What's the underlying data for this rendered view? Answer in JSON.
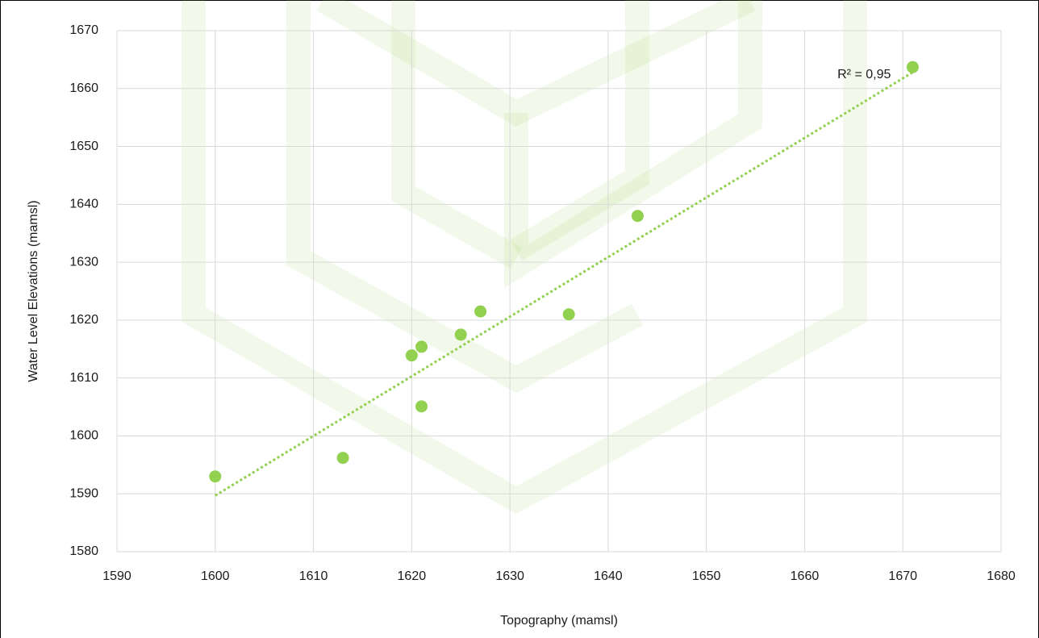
{
  "chart_data": {
    "type": "scatter",
    "x_label": "Topography (mamsl)",
    "y_label": "Water Level Elevations (mamsl)",
    "x": [
      1600,
      1613,
      1620,
      1621,
      1621,
      1625,
      1627,
      1636,
      1643,
      1671
    ],
    "values": [
      1593,
      1596.2,
      1613.9,
      1615.4,
      1605.1,
      1617.5,
      1621.5,
      1621,
      1638,
      1663.7
    ],
    "color": "#92d050",
    "trendline": {
      "x": [
        1600,
        1671
      ],
      "y": [
        1589.7,
        1662.8
      ],
      "label": "R² = 0,95",
      "color": "#92d050"
    },
    "xlim": [
      1590,
      1680
    ],
    "xticks": [
      1590,
      1600,
      1610,
      1620,
      1630,
      1640,
      1650,
      1660,
      1670,
      1680
    ],
    "ylim": [
      1580,
      1670
    ],
    "yticks": [
      1580,
      1590,
      1600,
      1610,
      1620,
      1630,
      1640,
      1650,
      1660,
      1670
    ],
    "grid": true
  }
}
